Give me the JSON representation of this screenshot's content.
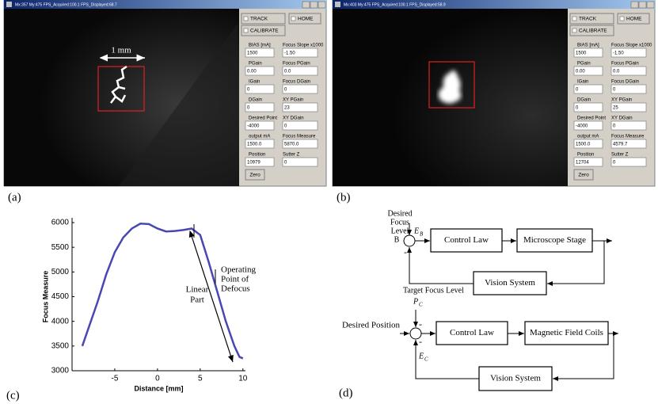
{
  "panel_a": {
    "label": "(a)",
    "title_bar": "Mx:357 My:475 FPS_Acquired:100.1 FPS_Displayed:68.7",
    "buttons": [
      "TRACK",
      "HOME",
      "CALIBRATE"
    ],
    "fields": [
      {
        "label": "BIAS [mA]",
        "value": "1500"
      },
      {
        "label": "Focus Slope x1000",
        "value": "-1.50"
      },
      {
        "label": "PGain",
        "value": "0.00"
      },
      {
        "label": "Focus PGain",
        "value": "0.0"
      },
      {
        "label": "IGain",
        "value": "0"
      },
      {
        "label": "Focus DGain",
        "value": "0"
      },
      {
        "label": "DGain",
        "value": "0"
      },
      {
        "label": "XY PGain",
        "value": "23"
      },
      {
        "label": "Desired Point",
        "value": "-4000"
      },
      {
        "label": "XY DGain",
        "value": "0"
      },
      {
        "label": "output mA",
        "value": "1500.0"
      },
      {
        "label": "Focus Measure",
        "value": "5870.0"
      },
      {
        "label": "Position",
        "value": "10979"
      },
      {
        "label": "Sutter Z",
        "value": "0"
      }
    ],
    "zero_button": "Zero",
    "scale_label": "1 mm"
  },
  "panel_b": {
    "label": "(b)",
    "title_bar": "Mx:403 My:475 FPS_Acquired:100.1 FPS_Displayed:58.9",
    "buttons": [
      "TRACK",
      "HOME",
      "CALIBRATE"
    ],
    "fields": [
      {
        "label": "BIAS [mA]",
        "value": "1500"
      },
      {
        "label": "Focus Slope x1000",
        "value": "-1.50"
      },
      {
        "label": "PGain",
        "value": "0.00"
      },
      {
        "label": "Focus PGain",
        "value": "0.0"
      },
      {
        "label": "IGain",
        "value": "0"
      },
      {
        "label": "Focus DGain",
        "value": "0"
      },
      {
        "label": "DGain",
        "value": "0"
      },
      {
        "label": "XY PGain",
        "value": "25"
      },
      {
        "label": "Desired Point",
        "value": "-4000"
      },
      {
        "label": "XY DGain",
        "value": "0"
      },
      {
        "label": "output mA",
        "value": "1500.0"
      },
      {
        "label": "Focus Measure",
        "value": "4579.7"
      },
      {
        "label": "Position",
        "value": "12704"
      },
      {
        "label": "Sutter Z",
        "value": "0"
      }
    ],
    "zero_button": "Zero"
  },
  "chart_data": {
    "type": "line",
    "panel_label": "(c)",
    "xlabel": "Distance [mm]",
    "ylabel": "Focus Measure",
    "x": [
      -8.8,
      -8,
      -7,
      -6,
      -5,
      -4,
      -3,
      -2,
      -1,
      0,
      1,
      2,
      3,
      4,
      5,
      6,
      7,
      8,
      9,
      9.6,
      10
    ],
    "values": [
      3500,
      3900,
      4400,
      4950,
      5400,
      5700,
      5880,
      5980,
      5970,
      5880,
      5820,
      5830,
      5850,
      5880,
      5750,
      5200,
      4600,
      4000,
      3500,
      3280,
      3250
    ],
    "color": "#4848b0",
    "xlim": [
      -10,
      10.3
    ],
    "ylim": [
      3000,
      6000
    ],
    "xticks": [
      -5,
      0,
      5,
      10
    ],
    "yticks": [
      3000,
      3500,
      4000,
      4500,
      5000,
      5500,
      6000
    ],
    "annotations": {
      "linear_part": [
        "Linear",
        "Part"
      ],
      "operating_point": [
        "Operating",
        "Point of",
        "Defocus"
      ]
    }
  },
  "diagram": {
    "label": "(d)",
    "focus_loop": {
      "input_label": [
        "Desired",
        "Focus",
        "Level",
        "B"
      ],
      "error_symbol": "E",
      "error_subscript": "B",
      "blocks": [
        "Control Law",
        "Microscope Stage",
        "Vision System"
      ],
      "feedback_label": "Target Focus Level",
      "sign": "-"
    },
    "position_loop": {
      "input_label": "Desired Position",
      "disturbance_symbol": "P",
      "disturbance_subscript": "C",
      "error_symbol": "E",
      "error_subscript": "C",
      "blocks": [
        "Control Law",
        "Magnetic Field Coils",
        "Vision System"
      ],
      "signs": [
        "-",
        "-"
      ]
    }
  }
}
